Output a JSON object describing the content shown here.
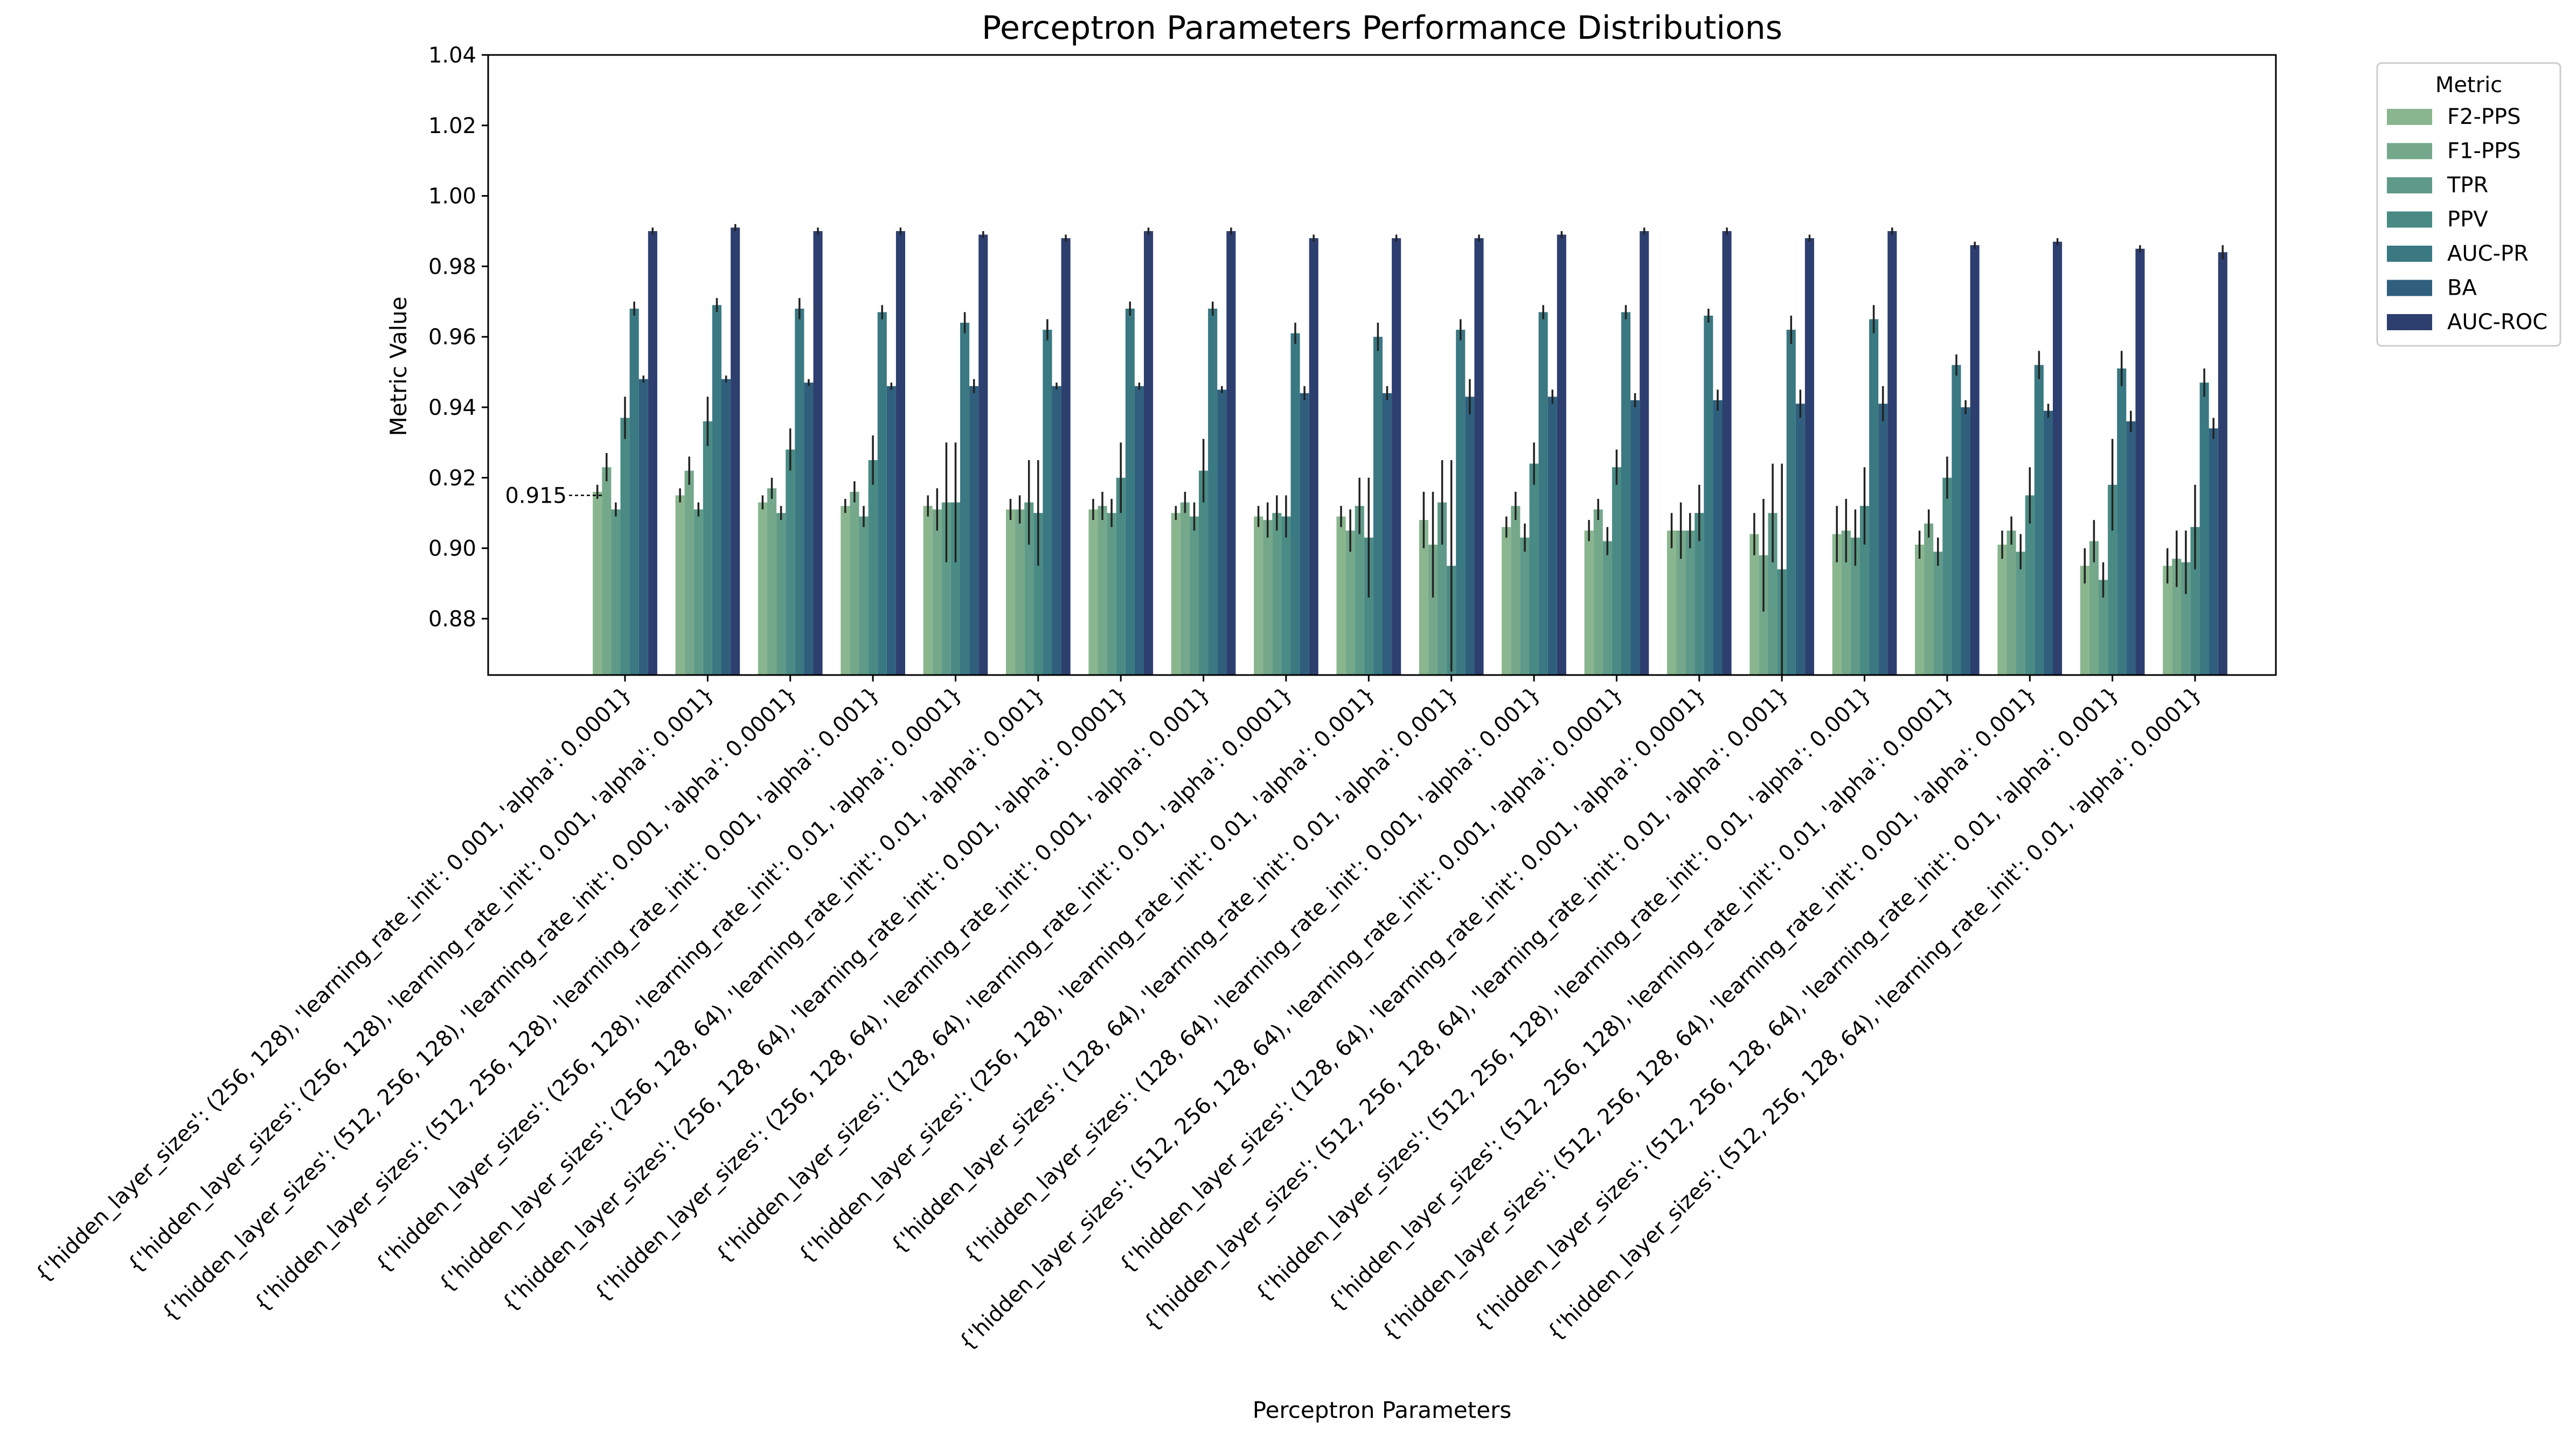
{
  "chart_data": {
    "type": "bar",
    "title": "Perceptron Parameters Performance Distributions",
    "xlabel": "Perceptron Parameters",
    "ylabel": "Metric Value",
    "ylim": [
      0.864,
      1.04
    ],
    "yticks": [
      "0.88",
      "0.90",
      "0.92",
      "0.94",
      "0.96",
      "0.98",
      "1.00",
      "1.02",
      "1.04"
    ],
    "grid": false,
    "legend": {
      "title": "Metric",
      "placement": "outside upper right"
    },
    "annotation": {
      "text": "0.915",
      "value": 0.915
    },
    "categories": [
      "{'hidden_layer_sizes': (256, 128), 'learning_rate_init': 0.001, 'alpha': 0.0001}",
      "{'hidden_layer_sizes': (256, 128), 'learning_rate_init': 0.001, 'alpha': 0.001}",
      "{'hidden_layer_sizes': (512, 256, 128), 'learning_rate_init': 0.001, 'alpha': 0.0001}",
      "{'hidden_layer_sizes': (512, 256, 128), 'learning_rate_init': 0.001, 'alpha': 0.001}",
      "{'hidden_layer_sizes': (256, 128), 'learning_rate_init': 0.01, 'alpha': 0.0001}",
      "{'hidden_layer_sizes': (256, 128, 64), 'learning_rate_init': 0.01, 'alpha': 0.001}",
      "{'hidden_layer_sizes': (256, 128, 64), 'learning_rate_init': 0.001, 'alpha': 0.0001}",
      "{'hidden_layer_sizes': (256, 128, 64), 'learning_rate_init': 0.001, 'alpha': 0.001}",
      "{'hidden_layer_sizes': (128, 64), 'learning_rate_init': 0.01, 'alpha': 0.0001}",
      "{'hidden_layer_sizes': (256, 128), 'learning_rate_init': 0.01, 'alpha': 0.001}",
      "{'hidden_layer_sizes': (128, 64), 'learning_rate_init': 0.01, 'alpha': 0.001}",
      "{'hidden_layer_sizes': (128, 64), 'learning_rate_init': 0.001, 'alpha': 0.001}",
      "{'hidden_layer_sizes': (512, 256, 128, 64), 'learning_rate_init': 0.001, 'alpha': 0.0001}",
      "{'hidden_layer_sizes': (128, 64), 'learning_rate_init': 0.001, 'alpha': 0.0001}",
      "{'hidden_layer_sizes': (512, 256, 128, 64), 'learning_rate_init': 0.01, 'alpha': 0.001}",
      "{'hidden_layer_sizes': (512, 256, 128), 'learning_rate_init': 0.01, 'alpha': 0.001}",
      "{'hidden_layer_sizes': (512, 256, 128), 'learning_rate_init': 0.01, 'alpha': 0.0001}",
      "{'hidden_layer_sizes': (512, 256, 128, 64), 'learning_rate_init': 0.001, 'alpha': 0.001}",
      "{'hidden_layer_sizes': (512, 256, 128, 64), 'learning_rate_init': 0.01, 'alpha': 0.001}",
      "{'hidden_layer_sizes': (512, 256, 128, 64), 'learning_rate_init': 0.01, 'alpha': 0.0001}"
    ],
    "series": [
      {
        "name": "F2-PPS",
        "color": "#8ab68f",
        "values": [
          0.916,
          0.915,
          0.913,
          0.912,
          0.912,
          0.911,
          0.911,
          0.91,
          0.909,
          0.909,
          0.908,
          0.906,
          0.905,
          0.905,
          0.904,
          0.904,
          0.901,
          0.901,
          0.895,
          0.895
        ],
        "errors": [
          0.002,
          0.002,
          0.002,
          0.002,
          0.003,
          0.003,
          0.003,
          0.002,
          0.003,
          0.003,
          0.008,
          0.003,
          0.003,
          0.005,
          0.006,
          0.008,
          0.004,
          0.004,
          0.005,
          0.005
        ]
      },
      {
        "name": "F1-PPS",
        "color": "#75a88b",
        "values": [
          0.923,
          0.922,
          0.917,
          0.916,
          0.911,
          0.911,
          0.912,
          0.913,
          0.908,
          0.905,
          0.901,
          0.912,
          0.911,
          0.905,
          0.898,
          0.905,
          0.907,
          0.905,
          0.902,
          0.897
        ],
        "errors": [
          0.004,
          0.004,
          0.003,
          0.003,
          0.006,
          0.004,
          0.004,
          0.003,
          0.005,
          0.006,
          0.015,
          0.004,
          0.003,
          0.008,
          0.016,
          0.009,
          0.004,
          0.004,
          0.006,
          0.008
        ]
      },
      {
        "name": "TPR",
        "color": "#5f9a88",
        "values": [
          0.911,
          0.911,
          0.91,
          0.909,
          0.913,
          0.913,
          0.91,
          0.909,
          0.91,
          0.912,
          0.913,
          0.903,
          0.902,
          0.905,
          0.91,
          0.903,
          0.899,
          0.899,
          0.891,
          0.896
        ],
        "errors": [
          0.002,
          0.002,
          0.002,
          0.003,
          0.017,
          0.012,
          0.004,
          0.004,
          0.005,
          0.008,
          0.012,
          0.004,
          0.004,
          0.005,
          0.014,
          0.008,
          0.004,
          0.005,
          0.005,
          0.009
        ]
      },
      {
        "name": "PPV",
        "color": "#4a8a85",
        "values": [
          0.937,
          0.936,
          0.928,
          0.925,
          0.913,
          0.91,
          0.92,
          0.922,
          0.909,
          0.903,
          0.895,
          0.924,
          0.923,
          0.91,
          0.894,
          0.912,
          0.92,
          0.915,
          0.918,
          0.906
        ],
        "errors": [
          0.006,
          0.007,
          0.006,
          0.007,
          0.017,
          0.015,
          0.01,
          0.009,
          0.006,
          0.017,
          0.03,
          0.006,
          0.005,
          0.008,
          0.03,
          0.011,
          0.006,
          0.008,
          0.013,
          0.012
        ]
      },
      {
        "name": "AUC-PR",
        "color": "#3a7882",
        "values": [
          0.968,
          0.969,
          0.968,
          0.967,
          0.964,
          0.962,
          0.968,
          0.968,
          0.961,
          0.96,
          0.962,
          0.967,
          0.967,
          0.966,
          0.962,
          0.965,
          0.952,
          0.952,
          0.951,
          0.947
        ],
        "errors": [
          0.002,
          0.002,
          0.003,
          0.002,
          0.003,
          0.003,
          0.002,
          0.002,
          0.003,
          0.004,
          0.003,
          0.002,
          0.002,
          0.002,
          0.004,
          0.004,
          0.003,
          0.004,
          0.005,
          0.004
        ]
      },
      {
        "name": "BA",
        "color": "#2f5f7d",
        "values": [
          0.948,
          0.948,
          0.947,
          0.946,
          0.946,
          0.946,
          0.946,
          0.945,
          0.944,
          0.944,
          0.943,
          0.943,
          0.942,
          0.942,
          0.941,
          0.941,
          0.94,
          0.939,
          0.936,
          0.934
        ],
        "errors": [
          0.001,
          0.001,
          0.001,
          0.001,
          0.002,
          0.001,
          0.001,
          0.001,
          0.002,
          0.002,
          0.005,
          0.002,
          0.002,
          0.003,
          0.004,
          0.005,
          0.002,
          0.002,
          0.003,
          0.003
        ]
      },
      {
        "name": "AUC-ROC",
        "color": "#2d3f6f",
        "values": [
          0.99,
          0.991,
          0.99,
          0.99,
          0.989,
          0.988,
          0.99,
          0.99,
          0.988,
          0.988,
          0.988,
          0.989,
          0.99,
          0.99,
          0.988,
          0.99,
          0.986,
          0.987,
          0.985,
          0.984
        ],
        "errors": [
          0.001,
          0.001,
          0.001,
          0.001,
          0.001,
          0.001,
          0.001,
          0.001,
          0.001,
          0.001,
          0.001,
          0.001,
          0.001,
          0.001,
          0.001,
          0.001,
          0.001,
          0.001,
          0.001,
          0.002
        ]
      }
    ]
  }
}
